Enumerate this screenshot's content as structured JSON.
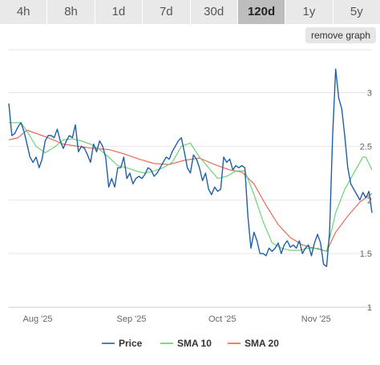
{
  "range_tabs": [
    {
      "label": "4h",
      "active": false
    },
    {
      "label": "8h",
      "active": false
    },
    {
      "label": "1d",
      "active": false
    },
    {
      "label": "7d",
      "active": false
    },
    {
      "label": "30d",
      "active": false
    },
    {
      "label": "120d",
      "active": true
    },
    {
      "label": "1y",
      "active": false
    },
    {
      "label": "5y",
      "active": false
    }
  ],
  "remove_graph_label": "remove graph",
  "chart_data": {
    "type": "line",
    "ylim": [
      1,
      3.4
    ],
    "yticks": [
      1,
      1.5,
      2,
      2.5,
      3
    ],
    "ytick_labels": [
      "1",
      "1.5",
      "2",
      "2.5",
      "3"
    ],
    "xlim": [
      "2025-07-23",
      "2025-11-20"
    ],
    "xticks": [
      {
        "date": "2025-08-01",
        "label": "Aug '25"
      },
      {
        "date": "2025-09-01",
        "label": "Sep '25"
      },
      {
        "date": "2025-10-01",
        "label": "Oct '25"
      },
      {
        "date": "2025-11-01",
        "label": "Nov '25"
      }
    ],
    "grid": true,
    "legend_position": "bottom",
    "series": [
      {
        "name": "Price",
        "color": "#1f5fa8",
        "points": [
          [
            "2025-07-23",
            2.9
          ],
          [
            "2025-07-24",
            2.6
          ],
          [
            "2025-07-25",
            2.62
          ],
          [
            "2025-07-26",
            2.68
          ],
          [
            "2025-07-27",
            2.72
          ],
          [
            "2025-07-28",
            2.64
          ],
          [
            "2025-07-29",
            2.52
          ],
          [
            "2025-07-30",
            2.4
          ],
          [
            "2025-07-31",
            2.35
          ],
          [
            "2025-08-01",
            2.4
          ],
          [
            "2025-08-02",
            2.3
          ],
          [
            "2025-08-03",
            2.38
          ],
          [
            "2025-08-04",
            2.55
          ],
          [
            "2025-08-05",
            2.6
          ],
          [
            "2025-08-06",
            2.6
          ],
          [
            "2025-08-07",
            2.58
          ],
          [
            "2025-08-08",
            2.66
          ],
          [
            "2025-08-09",
            2.55
          ],
          [
            "2025-08-10",
            2.48
          ],
          [
            "2025-08-11",
            2.55
          ],
          [
            "2025-08-12",
            2.6
          ],
          [
            "2025-08-13",
            2.58
          ],
          [
            "2025-08-14",
            2.7
          ],
          [
            "2025-08-15",
            2.45
          ],
          [
            "2025-08-16",
            2.5
          ],
          [
            "2025-08-17",
            2.48
          ],
          [
            "2025-08-18",
            2.42
          ],
          [
            "2025-08-19",
            2.35
          ],
          [
            "2025-08-20",
            2.52
          ],
          [
            "2025-08-21",
            2.45
          ],
          [
            "2025-08-22",
            2.55
          ],
          [
            "2025-08-23",
            2.5
          ],
          [
            "2025-08-24",
            2.4
          ],
          [
            "2025-08-25",
            2.12
          ],
          [
            "2025-08-26",
            2.2
          ],
          [
            "2025-08-27",
            2.12
          ],
          [
            "2025-08-28",
            2.3
          ],
          [
            "2025-08-29",
            2.3
          ],
          [
            "2025-08-30",
            2.4
          ],
          [
            "2025-08-31",
            2.2
          ],
          [
            "2025-09-01",
            2.25
          ],
          [
            "2025-09-02",
            2.15
          ],
          [
            "2025-09-03",
            2.2
          ],
          [
            "2025-09-04",
            2.22
          ],
          [
            "2025-09-05",
            2.2
          ],
          [
            "2025-09-06",
            2.24
          ],
          [
            "2025-09-07",
            2.3
          ],
          [
            "2025-09-08",
            2.28
          ],
          [
            "2025-09-09",
            2.22
          ],
          [
            "2025-09-10",
            2.25
          ],
          [
            "2025-09-11",
            2.3
          ],
          [
            "2025-09-12",
            2.35
          ],
          [
            "2025-09-13",
            2.4
          ],
          [
            "2025-09-14",
            2.38
          ],
          [
            "2025-09-15",
            2.45
          ],
          [
            "2025-09-16",
            2.5
          ],
          [
            "2025-09-17",
            2.55
          ],
          [
            "2025-09-18",
            2.58
          ],
          [
            "2025-09-19",
            2.45
          ],
          [
            "2025-09-20",
            2.3
          ],
          [
            "2025-09-21",
            2.25
          ],
          [
            "2025-09-22",
            2.42
          ],
          [
            "2025-09-23",
            2.38
          ],
          [
            "2025-09-24",
            2.3
          ],
          [
            "2025-09-25",
            2.18
          ],
          [
            "2025-09-26",
            2.25
          ],
          [
            "2025-09-27",
            2.1
          ],
          [
            "2025-09-28",
            2.05
          ],
          [
            "2025-09-29",
            2.12
          ],
          [
            "2025-09-30",
            2.08
          ],
          [
            "2025-10-01",
            2.1
          ],
          [
            "2025-10-02",
            2.4
          ],
          [
            "2025-10-03",
            2.35
          ],
          [
            "2025-10-04",
            2.38
          ],
          [
            "2025-10-05",
            2.28
          ],
          [
            "2025-10-06",
            2.32
          ],
          [
            "2025-10-07",
            2.3
          ],
          [
            "2025-10-08",
            2.32
          ],
          [
            "2025-10-09",
            2.3
          ],
          [
            "2025-10-10",
            1.85
          ],
          [
            "2025-10-11",
            1.55
          ],
          [
            "2025-10-12",
            1.7
          ],
          [
            "2025-10-13",
            1.62
          ],
          [
            "2025-10-14",
            1.5
          ],
          [
            "2025-10-15",
            1.5
          ],
          [
            "2025-10-16",
            1.48
          ],
          [
            "2025-10-17",
            1.55
          ],
          [
            "2025-10-18",
            1.52
          ],
          [
            "2025-10-19",
            1.55
          ],
          [
            "2025-10-20",
            1.6
          ],
          [
            "2025-10-21",
            1.5
          ],
          [
            "2025-10-22",
            1.58
          ],
          [
            "2025-10-23",
            1.62
          ],
          [
            "2025-10-24",
            1.56
          ],
          [
            "2025-10-25",
            1.58
          ],
          [
            "2025-10-26",
            1.55
          ],
          [
            "2025-10-27",
            1.62
          ],
          [
            "2025-10-28",
            1.5
          ],
          [
            "2025-10-29",
            1.55
          ],
          [
            "2025-10-30",
            1.58
          ],
          [
            "2025-10-31",
            1.48
          ],
          [
            "2025-11-01",
            1.6
          ],
          [
            "2025-11-02",
            1.68
          ],
          [
            "2025-11-03",
            1.6
          ],
          [
            "2025-11-04",
            1.4
          ],
          [
            "2025-11-05",
            1.38
          ],
          [
            "2025-11-06",
            1.7
          ],
          [
            "2025-11-07",
            2.6
          ],
          [
            "2025-11-08",
            3.22
          ],
          [
            "2025-11-09",
            2.95
          ],
          [
            "2025-11-10",
            2.85
          ],
          [
            "2025-11-11",
            2.6
          ],
          [
            "2025-11-12",
            2.3
          ],
          [
            "2025-11-13",
            2.15
          ],
          [
            "2025-11-14",
            2.1
          ],
          [
            "2025-11-15",
            2.05
          ],
          [
            "2025-11-16",
            2.0
          ],
          [
            "2025-11-17",
            2.07
          ],
          [
            "2025-11-18",
            2.02
          ],
          [
            "2025-11-19",
            2.08
          ],
          [
            "2025-11-20",
            1.88
          ]
        ]
      },
      {
        "name": "SMA 10",
        "color": "#5fcf6f",
        "points": [
          [
            "2025-07-23",
            2.72
          ],
          [
            "2025-07-25",
            2.72
          ],
          [
            "2025-07-27",
            2.72
          ],
          [
            "2025-07-29",
            2.64
          ],
          [
            "2025-08-01",
            2.5
          ],
          [
            "2025-08-04",
            2.44
          ],
          [
            "2025-08-07",
            2.49
          ],
          [
            "2025-08-10",
            2.56
          ],
          [
            "2025-08-13",
            2.57
          ],
          [
            "2025-08-16",
            2.55
          ],
          [
            "2025-08-19",
            2.52
          ],
          [
            "2025-08-22",
            2.47
          ],
          [
            "2025-08-25",
            2.4
          ],
          [
            "2025-08-28",
            2.32
          ],
          [
            "2025-08-31",
            2.3
          ],
          [
            "2025-09-03",
            2.27
          ],
          [
            "2025-09-06",
            2.25
          ],
          [
            "2025-09-09",
            2.27
          ],
          [
            "2025-09-12",
            2.3
          ],
          [
            "2025-09-15",
            2.35
          ],
          [
            "2025-09-18",
            2.5
          ],
          [
            "2025-09-21",
            2.53
          ],
          [
            "2025-09-24",
            2.4
          ],
          [
            "2025-09-27",
            2.3
          ],
          [
            "2025-09-30",
            2.2
          ],
          [
            "2025-10-03",
            2.22
          ],
          [
            "2025-10-06",
            2.27
          ],
          [
            "2025-10-09",
            2.27
          ],
          [
            "2025-10-12",
            2.05
          ],
          [
            "2025-10-15",
            1.8
          ],
          [
            "2025-10-18",
            1.6
          ],
          [
            "2025-10-21",
            1.55
          ],
          [
            "2025-10-24",
            1.53
          ],
          [
            "2025-10-27",
            1.53
          ],
          [
            "2025-10-30",
            1.55
          ],
          [
            "2025-11-02",
            1.55
          ],
          [
            "2025-11-05",
            1.52
          ],
          [
            "2025-11-08",
            1.88
          ],
          [
            "2025-11-11",
            2.1
          ],
          [
            "2025-11-14",
            2.25
          ],
          [
            "2025-11-17",
            2.4
          ],
          [
            "2025-11-18",
            2.4
          ],
          [
            "2025-11-20",
            2.28
          ]
        ]
      },
      {
        "name": "SMA 20",
        "color": "#e8604c",
        "points": [
          [
            "2025-07-23",
            2.56
          ],
          [
            "2025-07-26",
            2.58
          ],
          [
            "2025-07-29",
            2.65
          ],
          [
            "2025-08-01",
            2.62
          ],
          [
            "2025-08-05",
            2.58
          ],
          [
            "2025-08-10",
            2.52
          ],
          [
            "2025-08-15",
            2.5
          ],
          [
            "2025-08-20",
            2.48
          ],
          [
            "2025-08-25",
            2.47
          ],
          [
            "2025-08-30",
            2.43
          ],
          [
            "2025-09-04",
            2.38
          ],
          [
            "2025-09-09",
            2.34
          ],
          [
            "2025-09-14",
            2.33
          ],
          [
            "2025-09-19",
            2.37
          ],
          [
            "2025-09-24",
            2.39
          ],
          [
            "2025-09-29",
            2.33
          ],
          [
            "2025-10-04",
            2.28
          ],
          [
            "2025-10-08",
            2.26
          ],
          [
            "2025-10-12",
            2.15
          ],
          [
            "2025-10-16",
            1.95
          ],
          [
            "2025-10-20",
            1.77
          ],
          [
            "2025-10-24",
            1.65
          ],
          [
            "2025-10-28",
            1.58
          ],
          [
            "2025-11-01",
            1.55
          ],
          [
            "2025-11-05",
            1.52
          ],
          [
            "2025-11-08",
            1.7
          ],
          [
            "2025-11-12",
            1.85
          ],
          [
            "2025-11-16",
            1.98
          ],
          [
            "2025-11-20",
            2.06
          ]
        ]
      }
    ]
  }
}
